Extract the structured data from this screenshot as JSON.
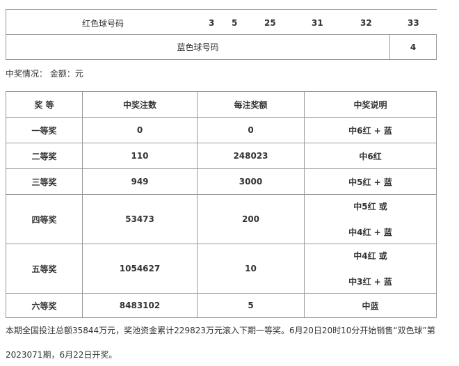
{
  "draw": {
    "red_label": "红色球号码",
    "red_numbers": [
      "3",
      "5",
      "25",
      "31",
      "32",
      "33"
    ],
    "blue_label": "蓝色球号码",
    "blue_number": "4"
  },
  "summary_caption": "中奖情况： 金额：元",
  "prize_table": {
    "headers": [
      "奖 等",
      "中奖注数",
      "每注奖额",
      "中奖说明"
    ],
    "rows": [
      {
        "level": "一等奖",
        "count": "0",
        "amount": "0",
        "desc": [
          "中6红 + 蓝"
        ]
      },
      {
        "level": "二等奖",
        "count": "110",
        "amount": "248023",
        "desc": [
          "中6红"
        ]
      },
      {
        "level": "三等奖",
        "count": "949",
        "amount": "3000",
        "desc": [
          "中5红 + 蓝"
        ]
      },
      {
        "level": "四等奖",
        "count": "53473",
        "amount": "200",
        "desc": [
          "中5红 或",
          "中4红 + 蓝"
        ]
      },
      {
        "level": "五等奖",
        "count": "1054627",
        "amount": "10",
        "desc": [
          "中4红 或",
          "中3红 + 蓝"
        ]
      },
      {
        "level": "六等奖",
        "count": "8483102",
        "amount": "5",
        "desc": [
          "中蓝"
        ]
      }
    ]
  },
  "footer": {
    "line1": "本期全国投注总额35844万元，奖池资金累计229823万元滚入下期一等奖。6月20日20时10分开始销售“双色球”第",
    "line2": "2023071期，6月22日开奖。"
  }
}
